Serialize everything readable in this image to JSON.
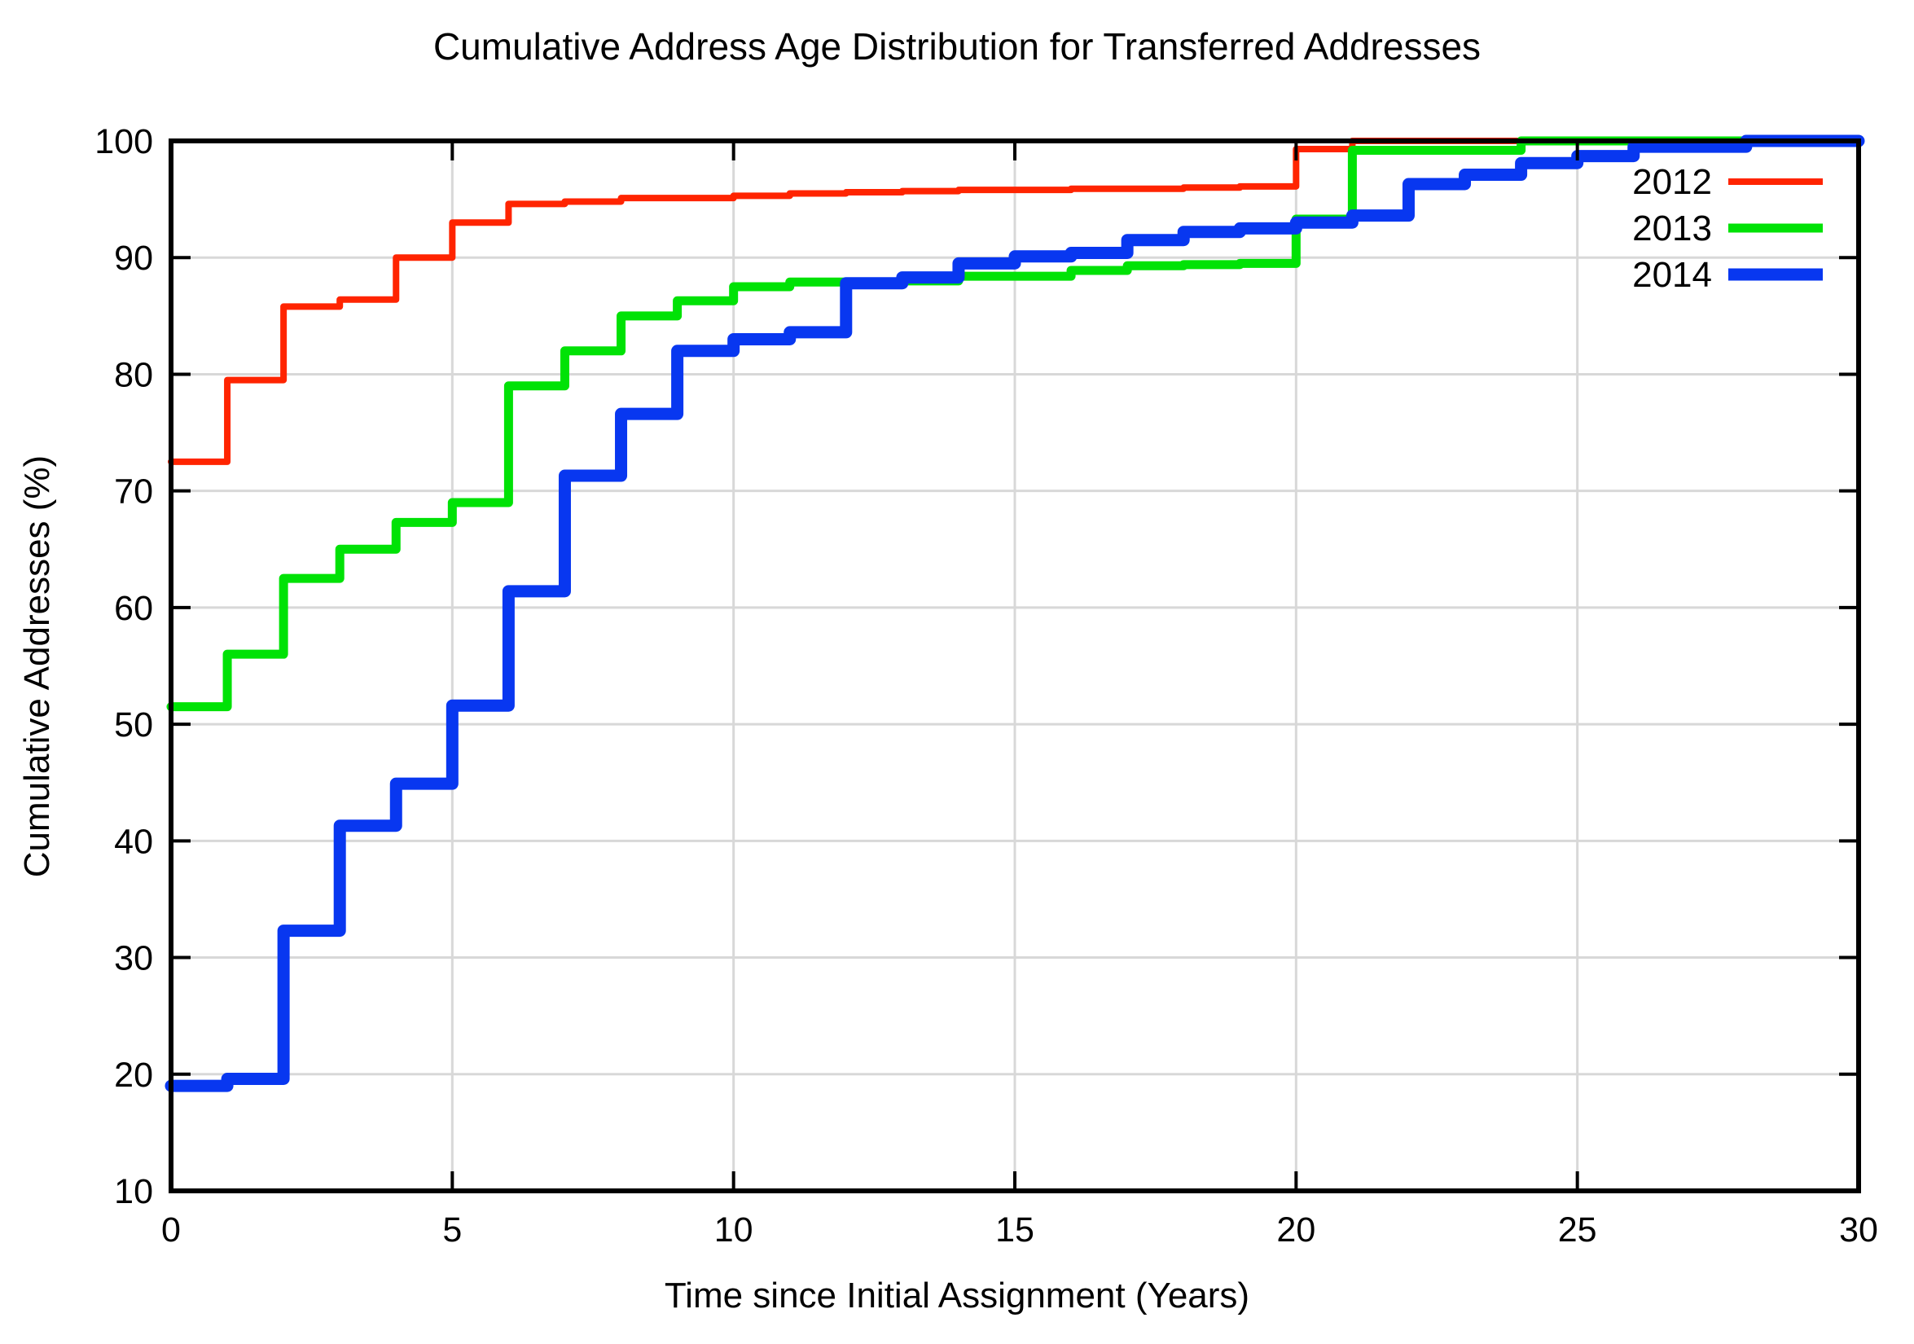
{
  "chart_data": {
    "type": "line",
    "subtype": "step-post-cdf",
    "title": "Cumulative Address Age Distribution for Transferred Addresses",
    "xlabel": "Time since Initial Assignment (Years)",
    "ylabel": "Cumulative Addresses (%)",
    "xlim": [
      0,
      30
    ],
    "ylim": [
      10,
      100
    ],
    "x_ticks": [
      0,
      5,
      10,
      15,
      20,
      25,
      30
    ],
    "y_ticks": [
      10,
      20,
      30,
      40,
      50,
      60,
      70,
      80,
      90,
      100
    ],
    "grid": true,
    "grid_color": "#d8d8d8",
    "axis_color": "#000000",
    "legend_position": "top-right-inside",
    "x": [
      0,
      1,
      2,
      3,
      4,
      5,
      6,
      7,
      8,
      9,
      10,
      11,
      12,
      13,
      14,
      15,
      16,
      17,
      18,
      19,
      20,
      21,
      22,
      23,
      24,
      25,
      26,
      27,
      28,
      29,
      30
    ],
    "series": [
      {
        "name": "2012",
        "color": "#ff2400",
        "stroke_width": 8,
        "values": [
          72.5,
          79.5,
          85.8,
          86.4,
          90,
          93,
          94.6,
          94.8,
          95.1,
          95.1,
          95.3,
          95.5,
          95.6,
          95.7,
          95.8,
          95.8,
          95.9,
          95.9,
          96,
          96.1,
          99.3,
          100,
          100,
          100,
          100,
          100,
          100,
          100,
          100,
          100,
          100
        ]
      },
      {
        "name": "2013",
        "color": "#00e206",
        "stroke_width": 11,
        "values": [
          51.5,
          56,
          62.5,
          65,
          67.3,
          69,
          79,
          82,
          85,
          86.3,
          87.5,
          87.9,
          87.9,
          88,
          88.4,
          88.4,
          88.9,
          89.3,
          89.4,
          89.5,
          93.3,
          99.2,
          99.2,
          99.2,
          100,
          100,
          100,
          100,
          100,
          100,
          100
        ]
      },
      {
        "name": "2014",
        "color": "#0837f0",
        "stroke_width": 15,
        "values": [
          19,
          19.6,
          32.3,
          41.3,
          44.9,
          51.6,
          61.4,
          71.3,
          76.6,
          82,
          83,
          83.6,
          87.8,
          88.3,
          89.5,
          90.1,
          90.4,
          91.5,
          92.2,
          92.5,
          93,
          93.6,
          96.3,
          97.1,
          98.1,
          98.7,
          99.5,
          99.5,
          100,
          100,
          100
        ]
      }
    ]
  }
}
